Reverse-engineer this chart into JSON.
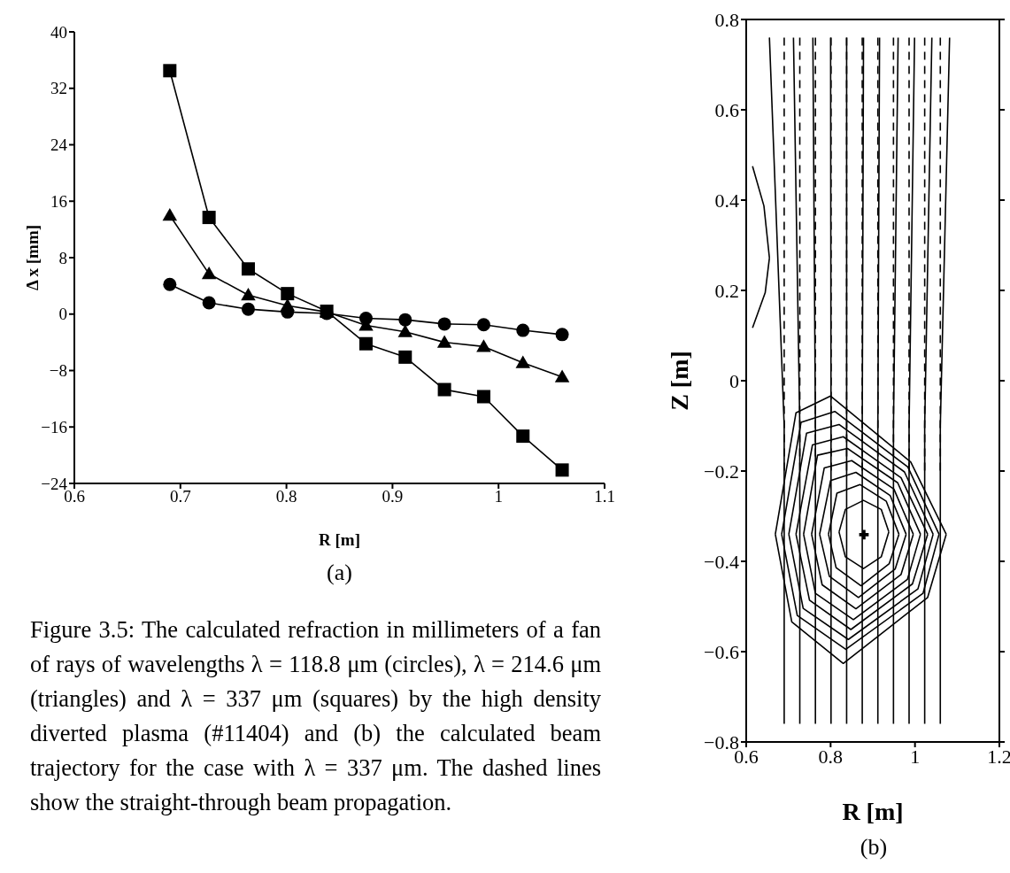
{
  "chart_data": [
    {
      "type": "line",
      "title": "(a)",
      "xlabel": "R [m]",
      "ylabel": "Δ x [mm]",
      "xlim": [
        0.6,
        1.1
      ],
      "xticks": [
        0.6,
        0.7,
        0.8,
        0.9,
        1,
        1.1
      ],
      "ylim": [
        -24,
        40
      ],
      "yticks": [
        {
          "value": -24,
          "label": "−24"
        },
        {
          "value": -16,
          "label": "−16"
        },
        {
          "value": -8,
          "label": "−8"
        },
        0,
        8,
        16,
        24,
        32,
        40
      ],
      "x": [
        0.69,
        0.727,
        0.764,
        0.801,
        0.838,
        0.875,
        0.912,
        0.949,
        0.986,
        1.023,
        1.06
      ],
      "series": [
        {
          "color": "#000000",
          "marker": "circle",
          "values": [
            4.2,
            1.6,
            0.7,
            0.3,
            0.1,
            -0.6,
            -0.8,
            -1.4,
            -1.5,
            -2.3,
            -2.9
          ]
        },
        {
          "color": "#000000",
          "marker": "triangle",
          "values": [
            14.0,
            5.7,
            2.7,
            1.2,
            0.3,
            -1.6,
            -2.5,
            -4.0,
            -4.6,
            -6.9,
            -8.9
          ]
        },
        {
          "color": "#000000",
          "marker": "square",
          "values": [
            34.5,
            13.7,
            6.4,
            2.9,
            0.4,
            -4.2,
            -6.1,
            -10.7,
            -11.7,
            -17.3,
            -22.1
          ]
        }
      ],
      "annotations": [
        "Figure 3.5: The calculated refraction in millimeters of a fan of rays of wavelengths λ = 118.8 μm (circles), λ = 214.6 μm (triangles) and λ = 337 μm (squares) by the high density diverted plasma (#11404) and (b) the calculated beam trajectory for the case with λ = 337 μm. The dashed lines show the straight-through beam propagation."
      ]
    },
    {
      "type": "line",
      "title": "(b)",
      "xlabel": "R [m]",
      "ylabel": "Z [m]",
      "xlim": [
        0.6,
        1.2
      ],
      "xticks": [
        0.6,
        0.8,
        1,
        1.2
      ],
      "ylim": [
        -0.8,
        0.8
      ],
      "yticks": [
        {
          "value": -0.8,
          "label": "−0.8"
        },
        {
          "value": -0.6,
          "label": "−0.6"
        },
        {
          "value": -0.4,
          "label": "−0.4"
        },
        {
          "value": -0.2,
          "label": "−0.2"
        },
        0,
        0.2,
        0.4,
        0.6,
        0.8
      ],
      "series": [
        {
          "color": "#000000",
          "line_style": "solid",
          "x": [
            0.655,
            0.69,
            0.69
          ],
          "values": [
            0.76,
            -0.1,
            -0.76
          ]
        },
        {
          "color": "#000000",
          "line_style": "solid",
          "x": [
            0.712,
            0.727,
            0.727
          ],
          "values": [
            0.76,
            -0.1,
            -0.76
          ]
        },
        {
          "color": "#000000",
          "line_style": "solid",
          "x": [
            0.758,
            0.764,
            0.764
          ],
          "values": [
            0.76,
            -0.1,
            -0.76
          ]
        },
        {
          "color": "#000000",
          "line_style": "solid",
          "x": [
            0.8,
            0.801,
            0.801
          ],
          "values": [
            0.76,
            -0.1,
            -0.76
          ]
        },
        {
          "color": "#000000",
          "line_style": "solid",
          "x": [
            0.838,
            0.838,
            0.838
          ],
          "values": [
            0.76,
            -0.1,
            -0.76
          ]
        },
        {
          "color": "#000000",
          "line_style": "solid",
          "x": [
            0.878,
            0.875,
            0.875
          ],
          "values": [
            0.76,
            -0.1,
            -0.76
          ]
        },
        {
          "color": "#000000",
          "line_style": "solid",
          "x": [
            0.916,
            0.912,
            0.912
          ],
          "values": [
            0.76,
            -0.1,
            -0.76
          ]
        },
        {
          "color": "#000000",
          "line_style": "solid",
          "x": [
            0.96,
            0.949,
            0.949
          ],
          "values": [
            0.76,
            -0.1,
            -0.76
          ]
        },
        {
          "color": "#000000",
          "line_style": "solid",
          "x": [
            0.999,
            0.986,
            0.986
          ],
          "values": [
            0.76,
            -0.1,
            -0.76
          ]
        },
        {
          "color": "#000000",
          "line_style": "solid",
          "x": [
            1.04,
            1.023,
            1.023
          ],
          "values": [
            0.76,
            -0.1,
            -0.76
          ]
        },
        {
          "color": "#000000",
          "line_style": "solid",
          "x": [
            1.082,
            1.06,
            1.06
          ],
          "values": [
            0.76,
            -0.1,
            -0.76
          ]
        },
        {
          "color": "#000000",
          "line_style": "dashed",
          "x": [
            0.69,
            0.69
          ],
          "values": [
            0.76,
            -0.2
          ]
        },
        {
          "color": "#000000",
          "line_style": "dashed",
          "x": [
            0.727,
            0.727
          ],
          "values": [
            0.76,
            -0.2
          ]
        },
        {
          "color": "#000000",
          "line_style": "dashed",
          "x": [
            0.764,
            0.764
          ],
          "values": [
            0.76,
            -0.2
          ]
        },
        {
          "color": "#000000",
          "line_style": "dashed",
          "x": [
            0.801,
            0.801
          ],
          "values": [
            0.76,
            -0.2
          ]
        },
        {
          "color": "#000000",
          "line_style": "dashed",
          "x": [
            0.838,
            0.838
          ],
          "values": [
            0.76,
            -0.2
          ]
        },
        {
          "color": "#000000",
          "line_style": "dashed",
          "x": [
            0.875,
            0.875
          ],
          "values": [
            0.76,
            -0.2
          ]
        },
        {
          "color": "#000000",
          "line_style": "dashed",
          "x": [
            0.912,
            0.912
          ],
          "values": [
            0.76,
            -0.2
          ]
        },
        {
          "color": "#000000",
          "line_style": "dashed",
          "x": [
            0.949,
            0.949
          ],
          "values": [
            0.76,
            -0.2
          ]
        },
        {
          "color": "#000000",
          "line_style": "dashed",
          "x": [
            0.986,
            0.986
          ],
          "values": [
            0.76,
            -0.2
          ]
        },
        {
          "color": "#000000",
          "line_style": "dashed",
          "x": [
            1.023,
            1.023
          ],
          "values": [
            0.76,
            -0.2
          ]
        },
        {
          "color": "#000000",
          "line_style": "dashed",
          "x": [
            1.06,
            1.06
          ],
          "values": [
            0.76,
            -0.2
          ]
        },
        {
          "color": "#000000",
          "line_style": "solid",
          "x": [
            0.669,
            0.718,
            0.8,
            0.99,
            1.074,
            null,
            0.669,
            0.708,
            0.83,
            1.03,
            1.074
          ],
          "values": [
            -0.34,
            -0.071,
            -0.034,
            -0.18,
            -0.34,
            null,
            -0.34,
            -0.534,
            -0.626,
            -0.48,
            -0.34
          ]
        },
        {
          "color": "#000000",
          "line_style": "solid",
          "x": [
            0.684,
            0.73,
            0.81,
            0.983,
            1.057,
            null,
            0.684,
            0.721,
            0.836,
            1.019,
            1.057
          ],
          "values": [
            -0.34,
            -0.092,
            -0.068,
            -0.191,
            -0.34,
            null,
            -0.34,
            -0.52,
            -0.595,
            -0.471,
            -0.34
          ]
        },
        {
          "color": "#000000",
          "line_style": "solid",
          "x": [
            0.701,
            0.743,
            0.82,
            0.975,
            1.043,
            null,
            0.701,
            0.735,
            0.842,
            1.007,
            1.043
          ],
          "values": [
            -0.34,
            -0.116,
            -0.097,
            -0.202,
            -0.34,
            null,
            -0.34,
            -0.504,
            -0.573,
            -0.461,
            -0.34
          ]
        },
        {
          "color": "#000000",
          "line_style": "solid",
          "x": [
            0.718,
            0.757,
            0.83,
            0.967,
            1.03,
            null,
            0.718,
            0.75,
            0.848,
            0.994,
            1.03
          ],
          "values": [
            -0.34,
            -0.142,
            -0.124,
            -0.215,
            -0.34,
            null,
            -0.34,
            -0.486,
            -0.551,
            -0.45,
            -0.34
          ]
        },
        {
          "color": "#000000",
          "line_style": "solid",
          "x": [
            0.736,
            0.769,
            0.84,
            0.959,
            1.013,
            null,
            0.736,
            0.764,
            0.854,
            0.982,
            1.013
          ],
          "values": [
            -0.34,
            -0.165,
            -0.15,
            -0.226,
            -0.34,
            null,
            -0.34,
            -0.471,
            -0.529,
            -0.44,
            -0.34
          ]
        },
        {
          "color": "#000000",
          "line_style": "solid",
          "x": [
            0.755,
            0.785,
            0.85,
            0.95,
            0.996,
            null,
            0.755,
            0.78,
            0.86,
            0.967,
            0.996
          ],
          "values": [
            -0.34,
            -0.193,
            -0.177,
            -0.24,
            -0.34,
            null,
            -0.34,
            -0.452,
            -0.505,
            -0.429,
            -0.34
          ]
        },
        {
          "color": "#000000",
          "line_style": "solid",
          "x": [
            0.774,
            0.8,
            0.86,
            0.941,
            0.979,
            null,
            0.774,
            0.797,
            0.866,
            0.953,
            0.979
          ],
          "values": [
            -0.34,
            -0.221,
            -0.203,
            -0.254,
            -0.34,
            null,
            -0.34,
            -0.433,
            -0.48,
            -0.417,
            -0.34
          ]
        },
        {
          "color": "#000000",
          "line_style": "solid",
          "x": [
            0.795,
            0.815,
            0.87,
            0.932,
            0.962,
            null,
            0.795,
            0.813,
            0.872,
            0.939,
            0.962
          ],
          "values": [
            -0.34,
            -0.249,
            -0.23,
            -0.267,
            -0.34,
            null,
            -0.34,
            -0.414,
            -0.454,
            -0.405,
            -0.34
          ]
        },
        {
          "color": "#000000",
          "line_style": "solid",
          "x": [
            0.82,
            0.835,
            0.878,
            0.92,
            0.938,
            null,
            0.82,
            0.835,
            0.878,
            0.92,
            0.938
          ],
          "values": [
            -0.335,
            -0.285,
            -0.265,
            -0.285,
            -0.335,
            null,
            -0.335,
            -0.39,
            -0.416,
            -0.39,
            -0.335
          ]
        },
        {
          "color": "#000000",
          "line_style": "solid",
          "x": [
            0.615,
            0.642,
            0.655,
            null,
            0.615,
            0.645,
            0.655
          ],
          "values": [
            0.475,
            0.387,
            0.272,
            null,
            0.117,
            0.195,
            0.272
          ]
        },
        {
          "type": "scatter",
          "color": "#000000",
          "marker": "cross",
          "x": [
            0.879
          ],
          "values": [
            -0.341
          ]
        }
      ]
    }
  ]
}
